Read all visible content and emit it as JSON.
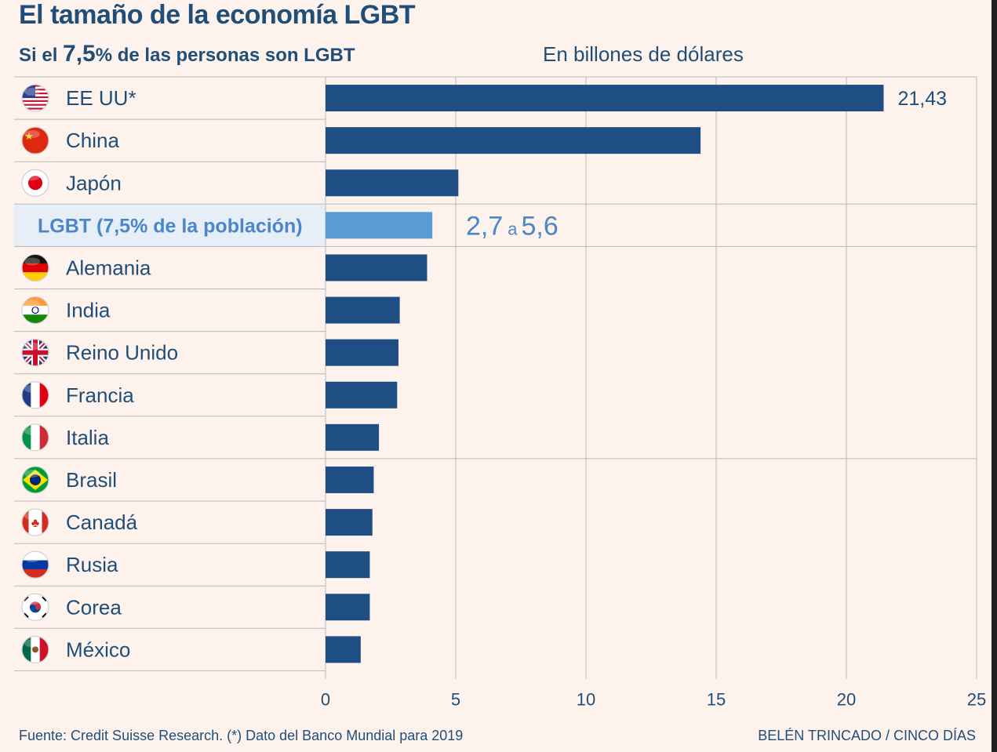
{
  "title": "El tamaño de la economía LGBT",
  "subtitle": {
    "prefix": "Si el ",
    "highlight": "7,5",
    "suffix": "% de las personas son LGBT"
  },
  "unit_label": "En billones de dólares",
  "source": "Fuente: Credit Suisse Research. (*) Dato del Banco Mundial para 2019",
  "credit": "BELÉN TRINCADO / CINCO DÍAS",
  "colors": {
    "bar": "#1f4e85",
    "highlight_bar": "#5b9bd5",
    "highlight_row": "#e6eef8",
    "text": "#1f4e79",
    "highlight_text": "#4a86c8"
  },
  "chart_data": {
    "type": "bar",
    "orientation": "horizontal",
    "xlim": [
      0,
      25
    ],
    "xticks": [
      "0",
      "5",
      "10",
      "15",
      "20",
      "25"
    ],
    "grid": true,
    "categories": [
      "EE UU*",
      "China",
      "Japón",
      "LGBT (7,5% de la población)",
      "Alemania",
      "India",
      "Reino Unido",
      "Francia",
      "Italia",
      "Brasil",
      "Canadá",
      "Rusia",
      "Corea",
      "México"
    ],
    "flags": [
      "us-flag-icon",
      "china-flag-icon",
      "japan-flag-icon",
      "",
      "germany-flag-icon",
      "india-flag-icon",
      "uk-flag-icon",
      "france-flag-icon",
      "italy-flag-icon",
      "brazil-flag-icon",
      "canada-flag-icon",
      "russia-flag-icon",
      "korea-flag-icon",
      "mexico-flag-icon"
    ],
    "values": [
      21.43,
      14.4,
      5.1,
      4.1,
      3.9,
      2.85,
      2.8,
      2.75,
      2.05,
      1.85,
      1.8,
      1.7,
      1.7,
      1.35
    ],
    "highlight_index": 3,
    "data_labels": {
      "EE UU*": "21,43"
    },
    "highlight_label": {
      "from": "2,7",
      "connector": "a",
      "to": "5,6"
    }
  }
}
